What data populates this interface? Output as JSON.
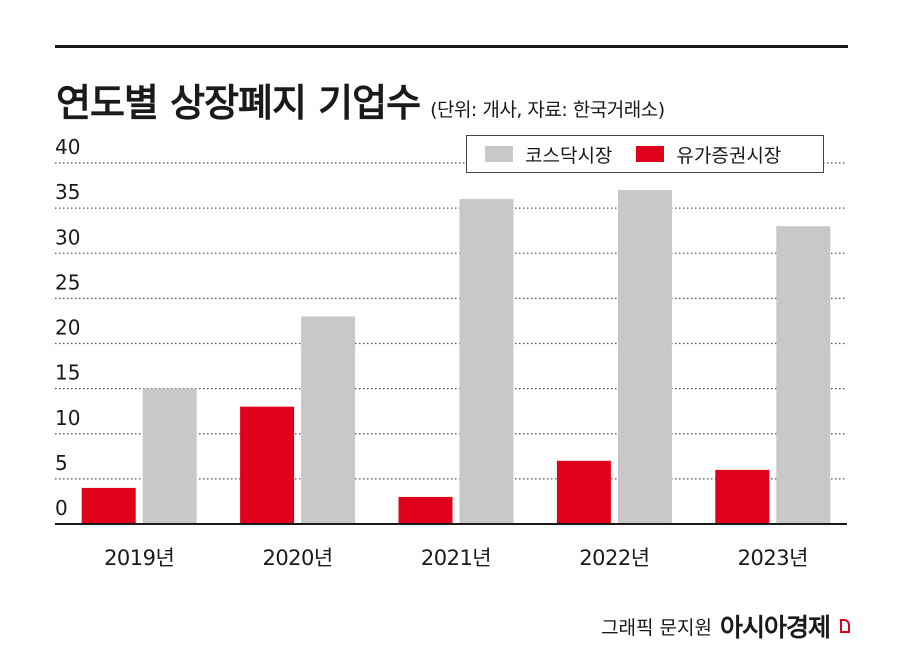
{
  "header": {
    "title": "연도별 상장폐지 기업수",
    "unit_note": "(단위: 개사, 자료: 한국거래소)"
  },
  "credit": {
    "byline": "그래픽 문지원",
    "brand": "아시아경제"
  },
  "colors": {
    "kosdaq": "#c8c8c8",
    "kospi": "#e0001b",
    "grid": "#555555",
    "text": "#1a1a1a"
  },
  "chart_data": {
    "type": "bar",
    "title": "연도별 상장폐지 기업수",
    "xlabel": "",
    "ylabel": "",
    "ylim": [
      0,
      40
    ],
    "yticks": [
      0,
      5,
      10,
      15,
      20,
      25,
      30,
      35,
      40
    ],
    "grid": true,
    "legend_position": "top-right",
    "categories": [
      "2019년",
      "2020년",
      "2021년",
      "2022년",
      "2023년"
    ],
    "series": [
      {
        "name": "유가증권시장",
        "values": [
          4,
          13,
          3,
          7,
          6
        ]
      },
      {
        "name": "코스닥시장",
        "values": [
          15,
          23,
          36,
          37,
          33
        ]
      }
    ]
  }
}
